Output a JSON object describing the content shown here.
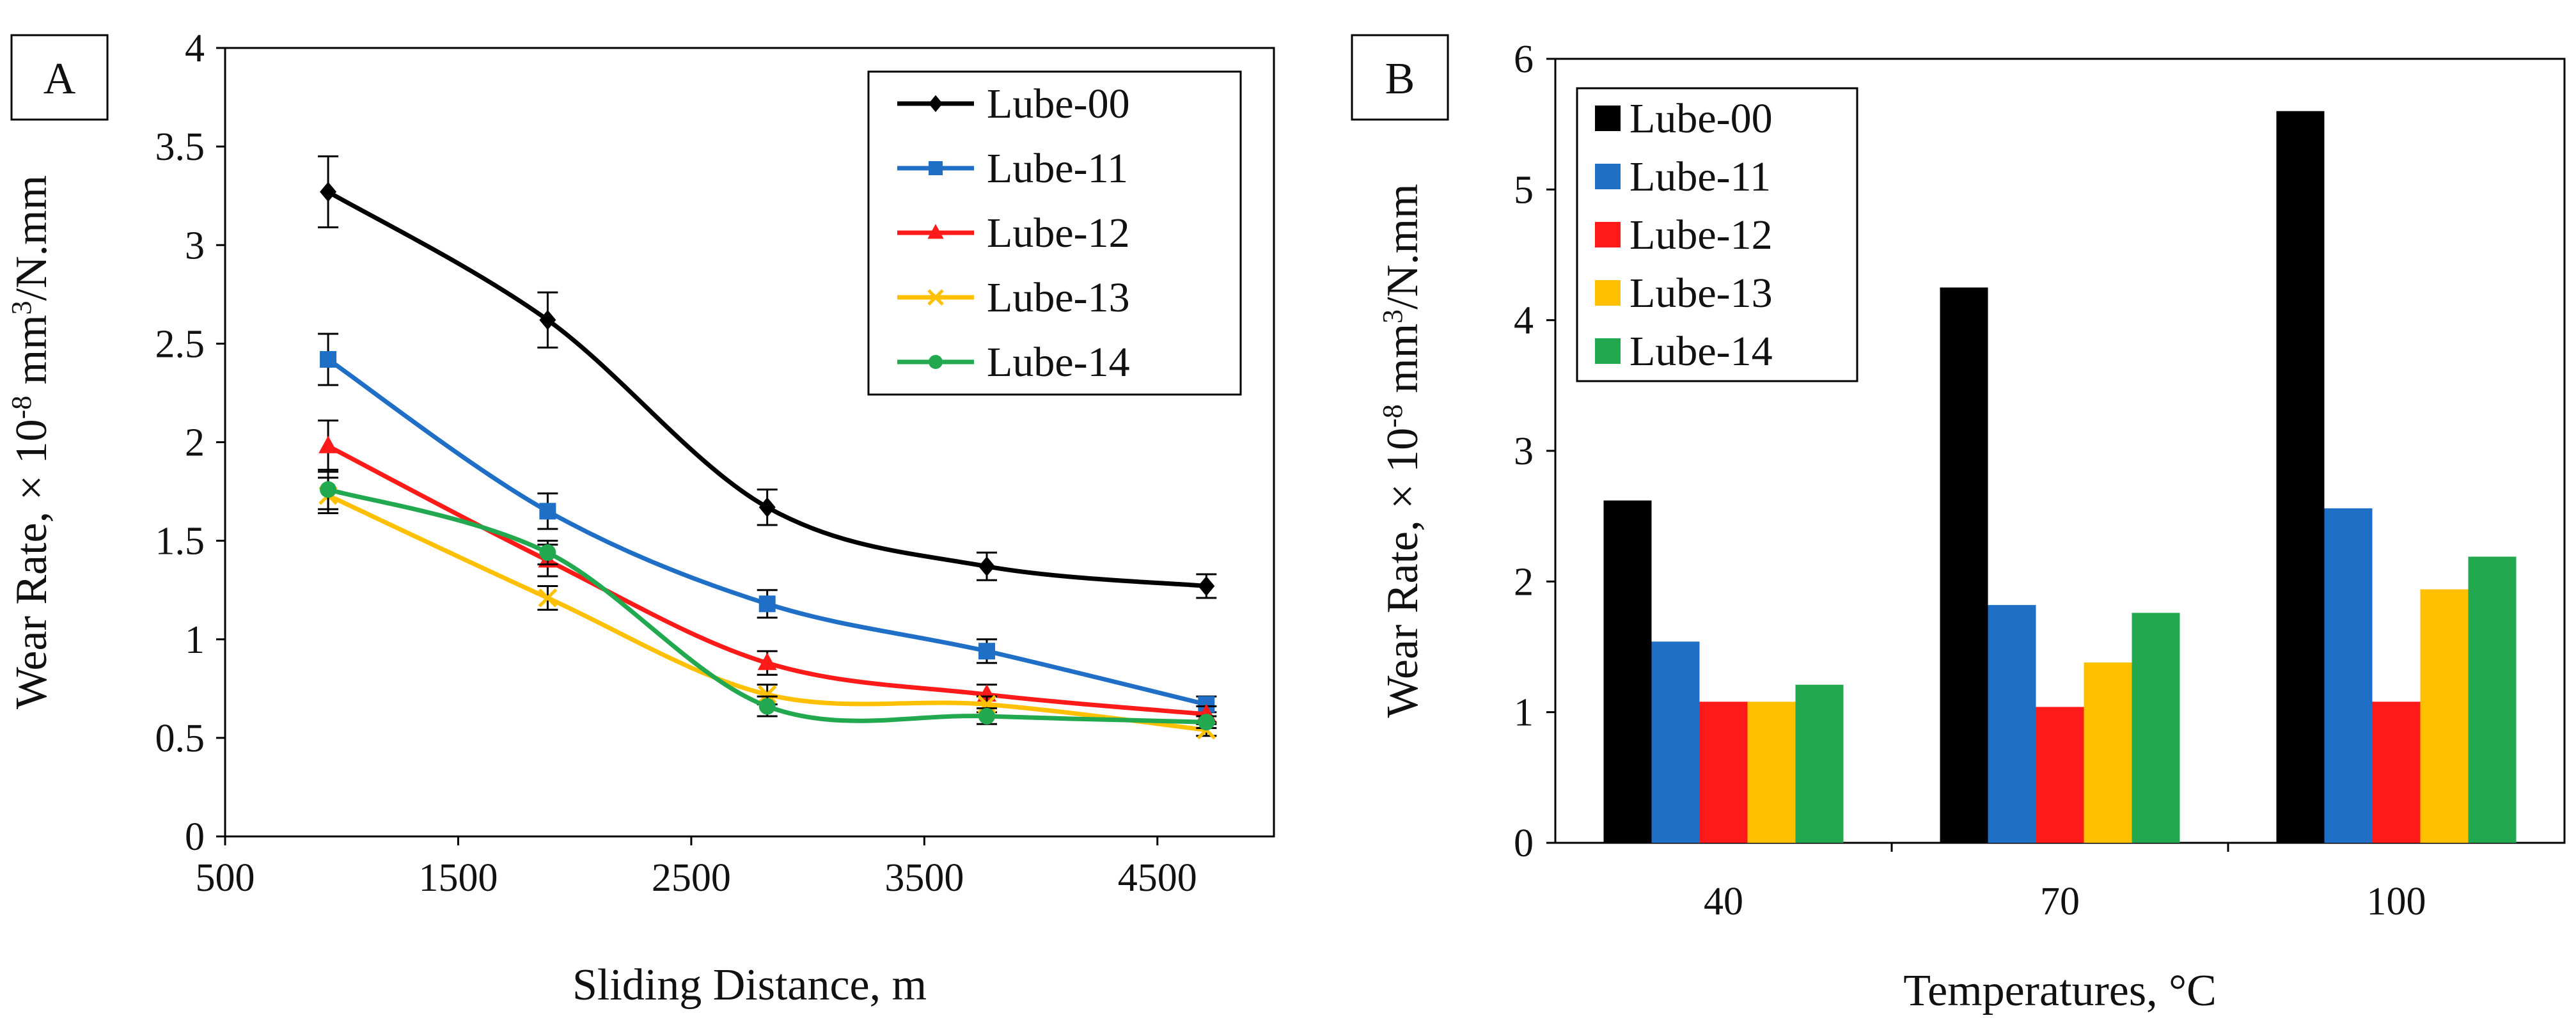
{
  "chart_data": [
    {
      "panel_label": "A",
      "type": "line",
      "xlabel": "Sliding Distance, m",
      "ylabel_prefix": "Wear Rate, × 10",
      "ylabel_exp1": "-8",
      "ylabel_mid": " mm",
      "ylabel_exp2": "3",
      "ylabel_suffix": "/N.mm",
      "xlim": [
        500,
        5000
      ],
      "ylim": [
        0,
        4
      ],
      "xticks": [
        "500",
        "1500",
        "2500",
        "3500",
        "4500"
      ],
      "xtick_values": [
        500,
        1500,
        2500,
        3500,
        4500
      ],
      "yticks": [
        "0",
        "0.5",
        "1",
        "1.5",
        "2",
        "2.5",
        "3",
        "3.5",
        "4"
      ],
      "ytick_values": [
        0,
        0.5,
        1,
        1.5,
        2,
        2.5,
        3,
        3.5,
        4
      ],
      "grid": false,
      "legend_position": "top-right",
      "x": [
        942,
        1884,
        2826,
        3768,
        4710
      ],
      "series": [
        {
          "name": "Lube-00",
          "color": "#000000",
          "marker": "diamond",
          "values": [
            3.27,
            2.62,
            1.67,
            1.37,
            1.27
          ],
          "errors": [
            0.18,
            0.14,
            0.09,
            0.07,
            0.06
          ]
        },
        {
          "name": "Lube-11",
          "color": "#1F6FC6",
          "marker": "square",
          "values": [
            2.42,
            1.65,
            1.18,
            0.94,
            0.67
          ],
          "errors": [
            0.13,
            0.09,
            0.07,
            0.06,
            0.04
          ]
        },
        {
          "name": "Lube-12",
          "color": "#FF1A1A",
          "marker": "triangle",
          "values": [
            1.98,
            1.4,
            0.88,
            0.72,
            0.62
          ],
          "errors": [
            0.13,
            0.08,
            0.06,
            0.05,
            0.04
          ]
        },
        {
          "name": "Lube-13",
          "color": "#FFC000",
          "marker": "x",
          "values": [
            1.73,
            1.21,
            0.72,
            0.67,
            0.54
          ],
          "errors": [
            0.09,
            0.06,
            0.05,
            0.04,
            0.03
          ]
        },
        {
          "name": "Lube-14",
          "color": "#22A94F",
          "marker": "circle",
          "values": [
            1.76,
            1.44,
            0.66,
            0.61,
            0.58
          ],
          "errors": [
            0.1,
            0.06,
            0.05,
            0.04,
            0.03
          ]
        }
      ]
    },
    {
      "panel_label": "B",
      "type": "bar",
      "xlabel": "Temperatures, °C",
      "ylabel_prefix": "Wear Rate, × 10",
      "ylabel_exp1": "-8",
      "ylabel_mid": " mm",
      "ylabel_exp2": "3",
      "ylabel_suffix": "/N.mm",
      "ylim": [
        0,
        6
      ],
      "yticks": [
        "0",
        "1",
        "2",
        "3",
        "4",
        "5",
        "6"
      ],
      "ytick_values": [
        0,
        1,
        2,
        3,
        4,
        5,
        6
      ],
      "grid": false,
      "legend_position": "top-left",
      "categories": [
        "40",
        "70",
        "100"
      ],
      "series": [
        {
          "name": "Lube-00",
          "color": "#000000",
          "values": [
            2.62,
            4.25,
            5.6
          ]
        },
        {
          "name": "Lube-11",
          "color": "#1F6FC6",
          "values": [
            1.54,
            1.82,
            2.56
          ]
        },
        {
          "name": "Lube-12",
          "color": "#FF1A1A",
          "values": [
            1.08,
            1.04,
            1.08
          ]
        },
        {
          "name": "Lube-13",
          "color": "#FFC000",
          "values": [
            1.08,
            1.38,
            1.94
          ]
        },
        {
          "name": "Lube-14",
          "color": "#22A94F",
          "values": [
            1.21,
            1.76,
            2.19
          ]
        }
      ]
    }
  ]
}
